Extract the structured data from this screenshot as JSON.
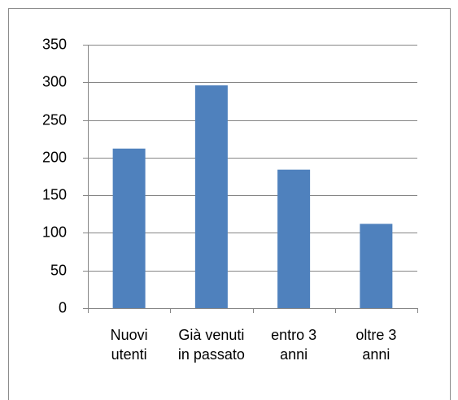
{
  "chart_data": {
    "type": "bar",
    "categories": [
      "Nuovi utenti",
      "Già venuti in passato",
      "entro 3 anni",
      "oltre 3 anni"
    ],
    "values": [
      212,
      296,
      184,
      112
    ],
    "color": "#4f81bd",
    "ylim": [
      0,
      350
    ],
    "yticks": [
      0,
      50,
      100,
      150,
      200,
      250,
      300,
      350
    ],
    "grid": true
  }
}
